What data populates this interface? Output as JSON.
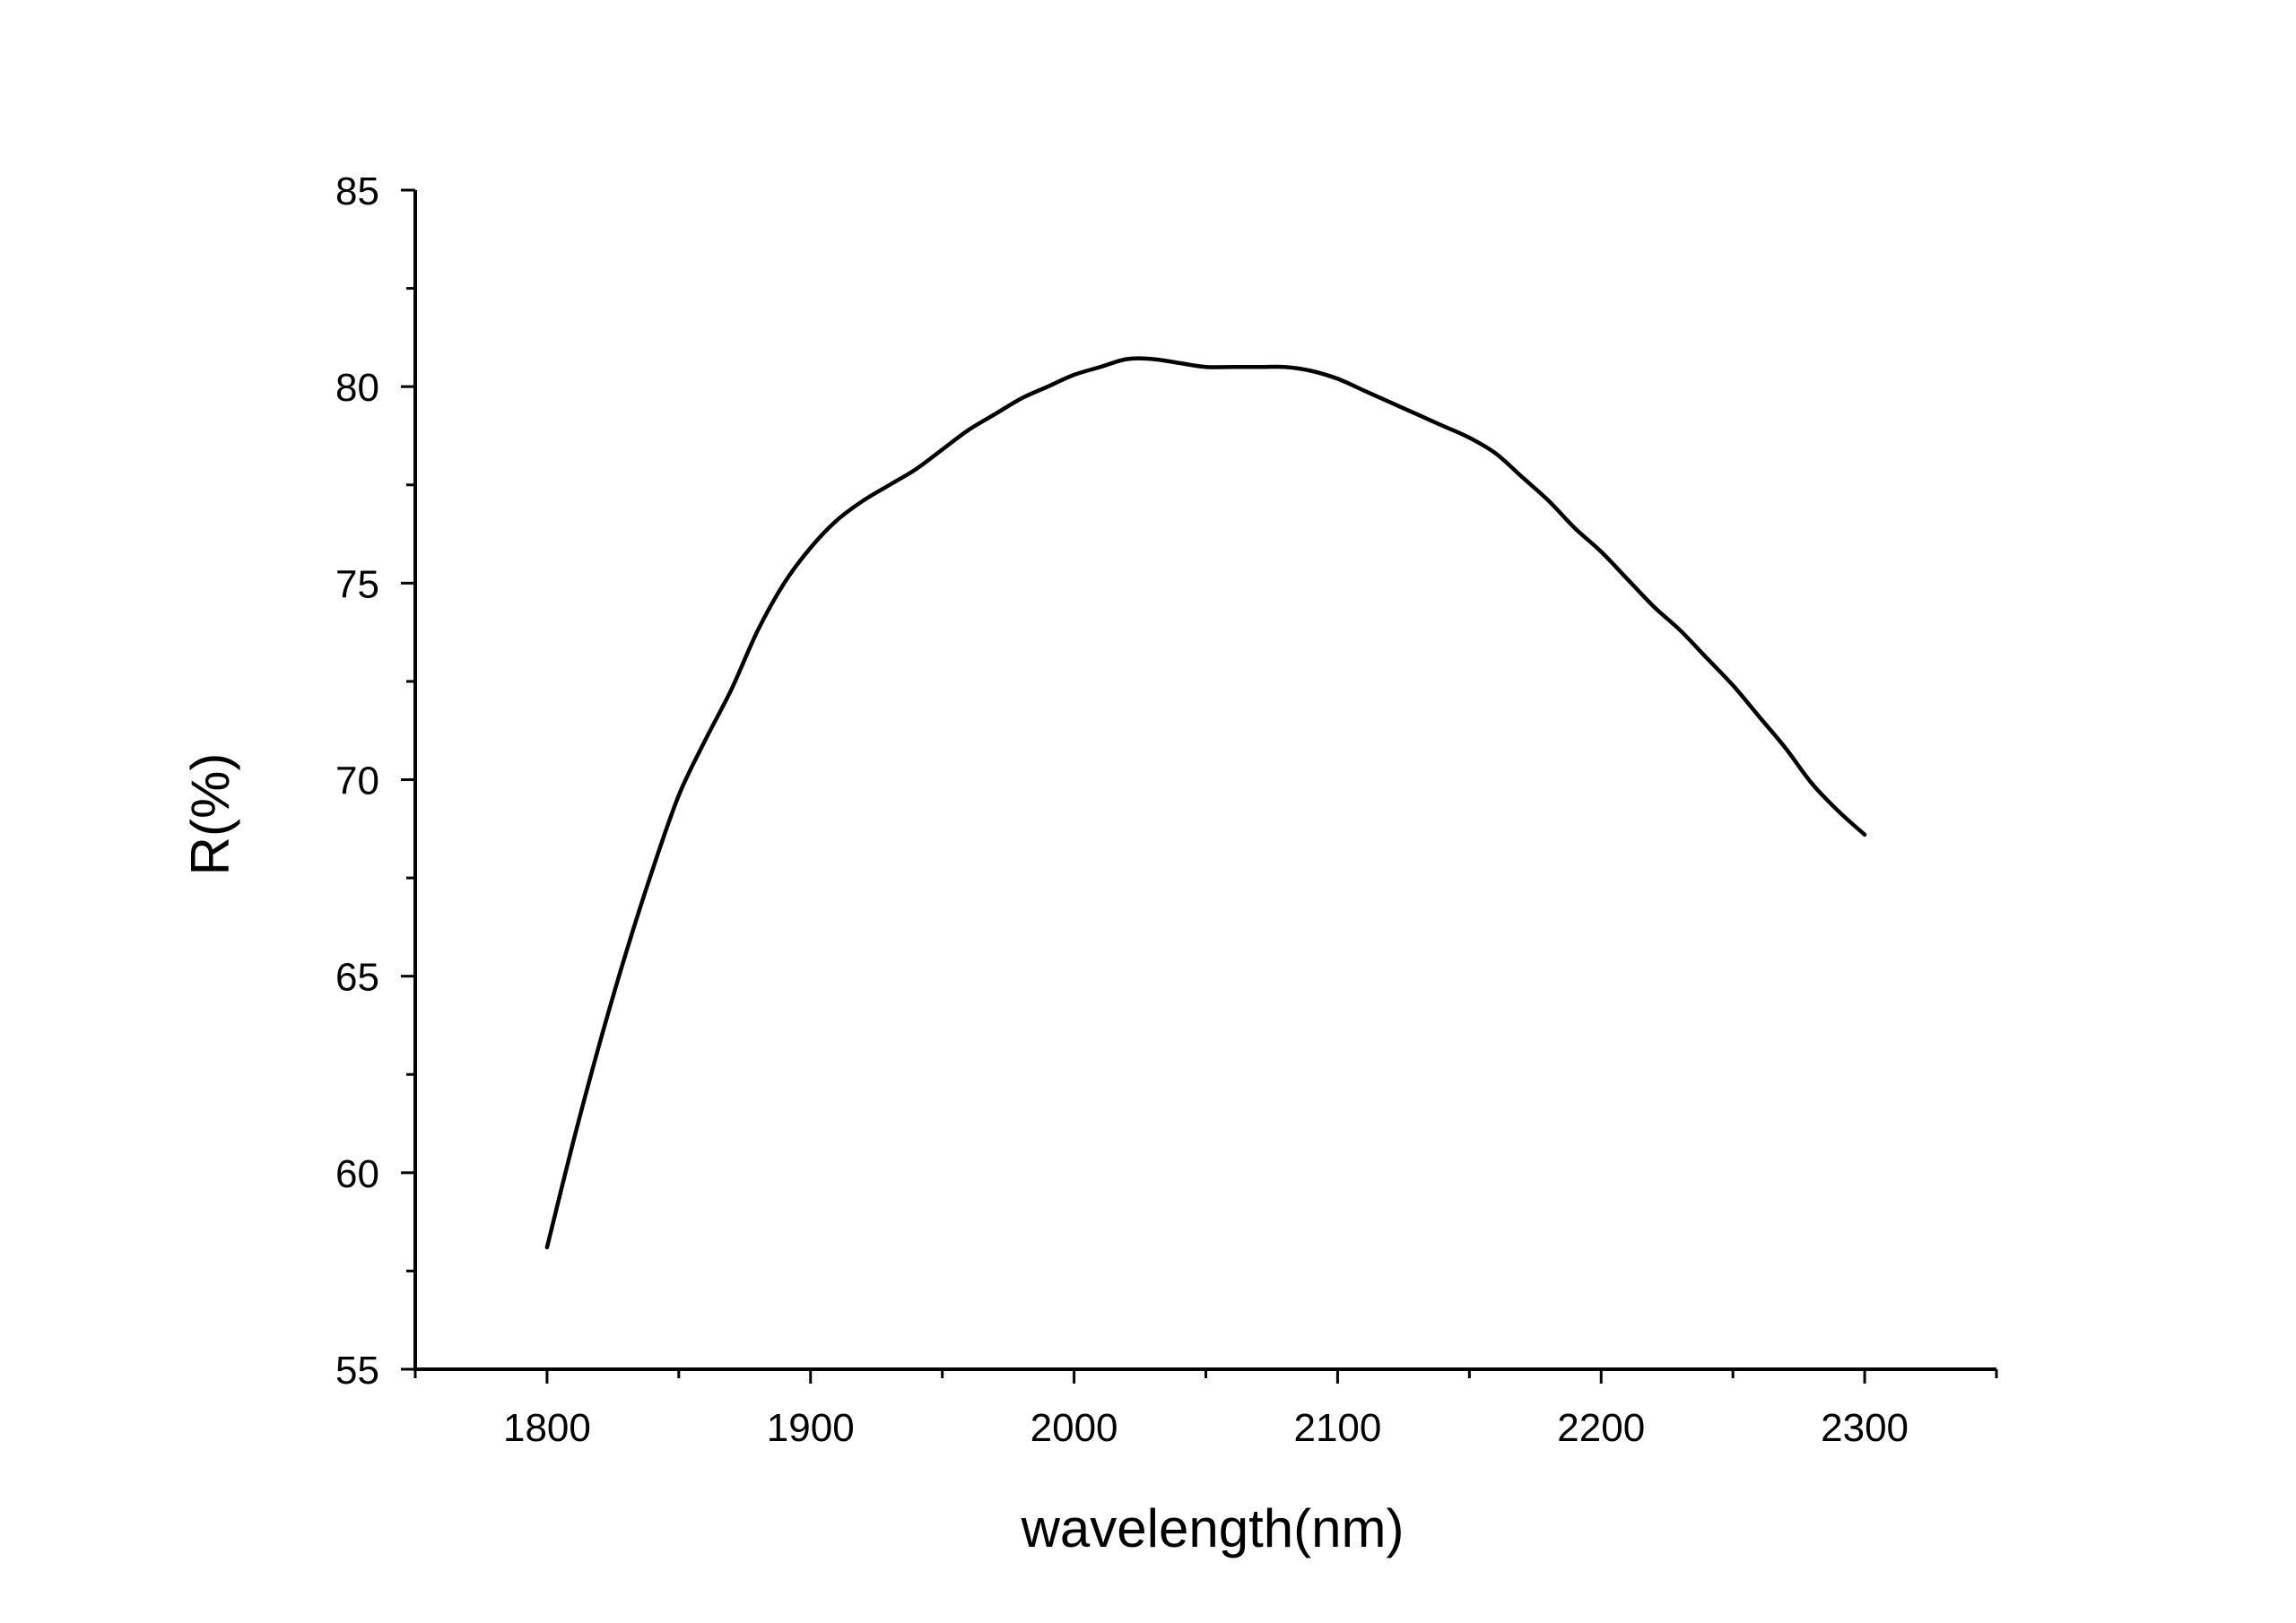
{
  "chart_data": {
    "type": "line",
    "title": "",
    "xlabel": "wavelength(nm)",
    "ylabel": "R(%)",
    "xlim": [
      1750,
      2350
    ],
    "ylim": [
      55,
      85
    ],
    "x_ticks": [
      1800,
      1900,
      2000,
      2100,
      2200,
      2300
    ],
    "y_ticks": [
      55,
      60,
      65,
      70,
      75,
      80,
      85
    ],
    "x_minor_step": 50,
    "y_minor_step": 2.5,
    "grid": false,
    "legend": "none",
    "line_color": "#000000",
    "series": [
      {
        "x": [
          1800,
          1810,
          1820,
          1830,
          1840,
          1850,
          1860,
          1870,
          1880,
          1890,
          1900,
          1910,
          1920,
          1930,
          1940,
          1950,
          1960,
          1970,
          1980,
          1990,
          2000,
          2010,
          2020,
          2030,
          2040,
          2050,
          2060,
          2070,
          2080,
          2090,
          2100,
          2110,
          2120,
          2130,
          2140,
          2150,
          2160,
          2170,
          2180,
          2190,
          2200,
          2210,
          2220,
          2230,
          2240,
          2250,
          2260,
          2270,
          2280,
          2290,
          2300
        ],
        "values": [
          58.1,
          60.8,
          63.3,
          65.6,
          67.7,
          69.6,
          71.0,
          72.3,
          73.8,
          75.0,
          75.9,
          76.6,
          77.1,
          77.5,
          77.9,
          78.4,
          78.9,
          79.3,
          79.7,
          80.0,
          80.3,
          80.5,
          80.7,
          80.7,
          80.6,
          80.5,
          80.5,
          80.5,
          80.5,
          80.4,
          80.2,
          79.9,
          79.6,
          79.3,
          79.0,
          78.7,
          78.3,
          77.7,
          77.1,
          76.4,
          75.8,
          75.1,
          74.4,
          73.8,
          73.1,
          72.4,
          71.6,
          70.8,
          69.9,
          69.2,
          68.6
        ]
      }
    ]
  }
}
